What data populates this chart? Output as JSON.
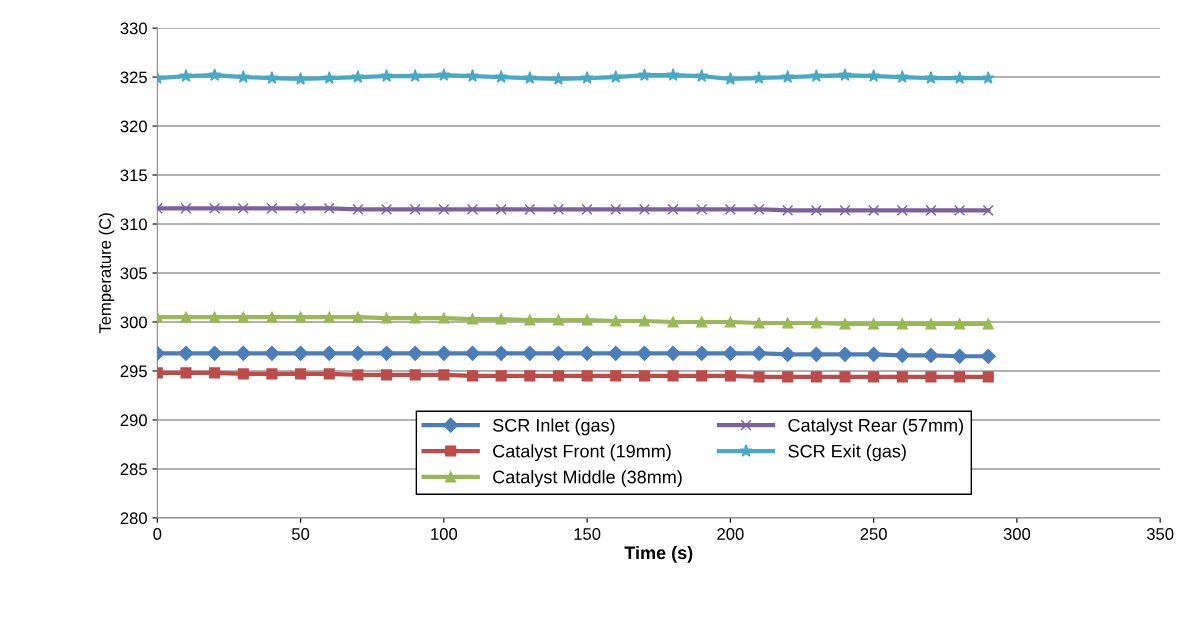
{
  "chart_data": {
    "type": "line",
    "xlabel": "Time (s)",
    "ylabel": "Temperature (C)",
    "x": [
      0,
      10,
      20,
      30,
      40,
      50,
      60,
      70,
      80,
      90,
      100,
      110,
      120,
      130,
      140,
      150,
      160,
      170,
      180,
      190,
      200,
      210,
      220,
      230,
      240,
      250,
      260,
      270,
      280,
      290
    ],
    "series": [
      {
        "name": "SCR Inlet (gas)",
        "color": "#4a7ebb",
        "marker": "diamond",
        "values": [
          296.8,
          296.8,
          296.8,
          296.8,
          296.8,
          296.8,
          296.8,
          296.8,
          296.8,
          296.8,
          296.8,
          296.8,
          296.8,
          296.8,
          296.8,
          296.8,
          296.8,
          296.8,
          296.8,
          296.8,
          296.8,
          296.8,
          296.7,
          296.7,
          296.7,
          296.7,
          296.6,
          296.6,
          296.5,
          296.5
        ]
      },
      {
        "name": "Catalyst Front (19mm)",
        "color": "#be4b48",
        "marker": "square",
        "values": [
          294.8,
          294.8,
          294.8,
          294.7,
          294.7,
          294.7,
          294.7,
          294.6,
          294.6,
          294.6,
          294.6,
          294.5,
          294.5,
          294.5,
          294.5,
          294.5,
          294.5,
          294.5,
          294.5,
          294.5,
          294.5,
          294.4,
          294.4,
          294.4,
          294.4,
          294.4,
          294.4,
          294.4,
          294.4,
          294.4
        ]
      },
      {
        "name": "Catalyst Middle (38mm)",
        "color": "#98b954",
        "marker": "triangle",
        "values": [
          300.5,
          300.5,
          300.5,
          300.5,
          300.5,
          300.5,
          300.5,
          300.5,
          300.4,
          300.4,
          300.4,
          300.3,
          300.3,
          300.2,
          300.2,
          300.2,
          300.1,
          300.1,
          300.0,
          300.0,
          300.0,
          299.9,
          299.9,
          299.9,
          299.8,
          299.8,
          299.8,
          299.8,
          299.8,
          299.8
        ]
      },
      {
        "name": "Catalyst Rear (57mm)",
        "color": "#7d60a0",
        "marker": "cross",
        "values": [
          311.6,
          311.6,
          311.6,
          311.6,
          311.6,
          311.6,
          311.6,
          311.5,
          311.5,
          311.5,
          311.5,
          311.5,
          311.5,
          311.5,
          311.5,
          311.5,
          311.5,
          311.5,
          311.5,
          311.5,
          311.5,
          311.5,
          311.4,
          311.4,
          311.4,
          311.4,
          311.4,
          311.4,
          311.4,
          311.4
        ]
      },
      {
        "name": "SCR Exit (gas)",
        "color": "#46aac5",
        "marker": "star",
        "values": [
          324.9,
          325.1,
          325.2,
          325.0,
          324.9,
          324.8,
          324.9,
          325.0,
          325.1,
          325.1,
          325.2,
          325.1,
          325.0,
          324.9,
          324.8,
          324.9,
          325.0,
          325.2,
          325.2,
          325.1,
          324.8,
          324.9,
          325.0,
          325.1,
          325.2,
          325.1,
          325.0,
          324.9,
          324.9,
          324.9
        ]
      }
    ],
    "xlim": [
      0,
      350
    ],
    "xticks": [
      0,
      50,
      100,
      150,
      200,
      250,
      300,
      350
    ],
    "ylim": [
      280,
      330
    ],
    "yticks": [
      280,
      285,
      290,
      295,
      300,
      305,
      310,
      315,
      320,
      325,
      330
    ],
    "grid": "y",
    "legend": "bottom",
    "line_style": "solid"
  }
}
